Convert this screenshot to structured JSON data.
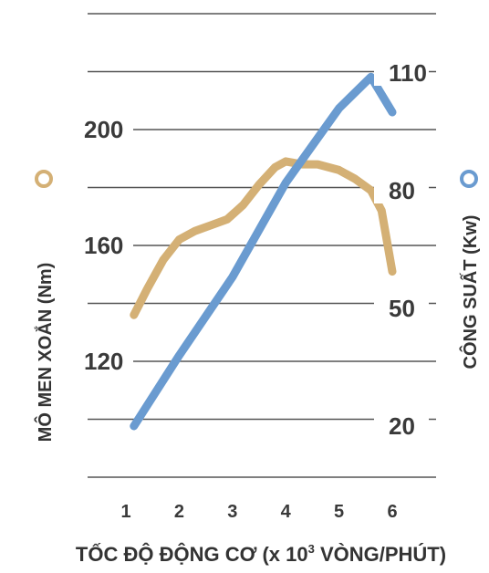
{
  "chart_data": {
    "type": "line",
    "xlabel_main": "TỐC ĐỘ ĐỘNG CƠ (x 10",
    "xlabel_sup": "3",
    "xlabel_tail": " VÒNG/PHÚT)",
    "x_ticks": [
      "1",
      "2",
      "3",
      "4",
      "5",
      "6"
    ],
    "xlim": [
      1,
      6
    ],
    "left_axis": {
      "label": "MÔ MEN XOẮN (Nm)",
      "ticks": [
        "200",
        "160",
        "120"
      ],
      "tick_values": [
        200,
        160,
        120
      ],
      "ylim": [
        100,
        220
      ]
    },
    "right_axis": {
      "label": "CÔNG SUẤT (Kw)",
      "ticks": [
        "110",
        "80",
        "50",
        "20"
      ],
      "tick_values": [
        110,
        80,
        50,
        20
      ],
      "ylim": [
        20,
        110
      ]
    },
    "gridlines": [
      240,
      220,
      200,
      180,
      160,
      140,
      120,
      100,
      80
    ],
    "series": [
      {
        "axis": "left",
        "color": "#d4b075",
        "x": [
          1.15,
          1.4,
          1.7,
          2.0,
          2.3,
          2.6,
          2.9,
          3.2,
          3.5,
          3.8,
          4.0,
          4.3,
          4.6,
          5.0,
          5.3,
          5.6,
          5.8,
          6.0
        ],
        "values": [
          136,
          145,
          155,
          162,
          165,
          167,
          169,
          174,
          181,
          187,
          189,
          188,
          188,
          186,
          183,
          179,
          172,
          151
        ]
      },
      {
        "axis": "right",
        "color": "#6a9bd0",
        "x": [
          1.15,
          2.0,
          3.0,
          4.0,
          5.0,
          5.6,
          6.0
        ],
        "values": [
          20,
          38,
          58,
          82,
          101,
          109,
          100
        ]
      }
    ],
    "legend_markers": [
      {
        "axis": "left",
        "color": "#d4b075",
        "shape": "ring"
      },
      {
        "axis": "right",
        "color": "#6a9bd0",
        "shape": "ring"
      }
    ]
  }
}
